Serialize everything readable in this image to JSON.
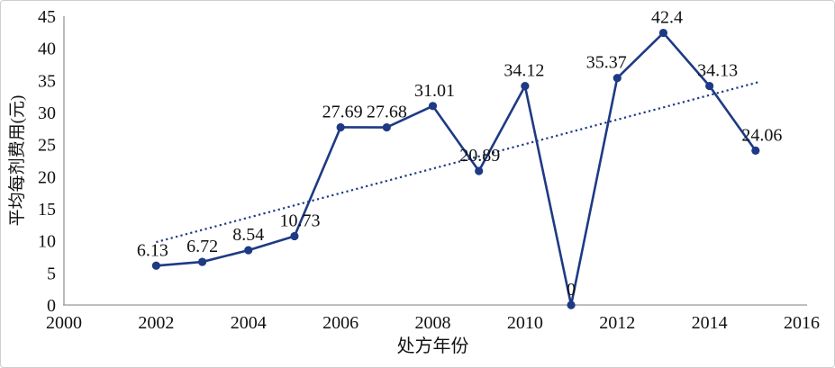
{
  "chart_data": {
    "type": "line",
    "title": "",
    "xlabel": "处方年份",
    "ylabel": "平均每剂费用(元)",
    "x": [
      2002,
      2003,
      2004,
      2005,
      2006,
      2007,
      2008,
      2009,
      2010,
      2011,
      2012,
      2013,
      2014,
      2015
    ],
    "values": [
      6.13,
      6.72,
      8.54,
      10.73,
      27.69,
      27.68,
      31.01,
      20.89,
      34.12,
      0,
      35.37,
      42.4,
      34.13,
      24.06
    ],
    "point_labels": [
      "6.13",
      "6.72",
      "8.54",
      "10.73",
      "27.69",
      "27.68",
      "31.01",
      "20.89",
      "34.12",
      "0",
      "35.37",
      "42.4",
      "34.13",
      "24.06"
    ],
    "xlim": [
      2000,
      2016
    ],
    "ylim": [
      0,
      45
    ],
    "xticks": [
      2000,
      2002,
      2004,
      2006,
      2008,
      2010,
      2012,
      2014,
      2016
    ],
    "yticks": [
      0,
      5,
      10,
      15,
      20,
      25,
      30,
      35,
      40,
      45
    ],
    "grid": false,
    "legend": false,
    "series_name": "平均每剂费用",
    "series_color": "#1e3a85",
    "axis_color": "#969696",
    "label_color": "#111111",
    "trendline": {
      "style": "dotted",
      "x1": 2002,
      "y1": 9.8,
      "x2": 2015.1,
      "y2": 34.8,
      "color": "#1e3a85"
    }
  },
  "layout_hints": {
    "label_dx": [
      -4,
      0,
      0,
      6,
      2,
      0,
      2,
      1,
      -1,
      0,
      -12,
      4,
      9,
      7
    ]
  }
}
